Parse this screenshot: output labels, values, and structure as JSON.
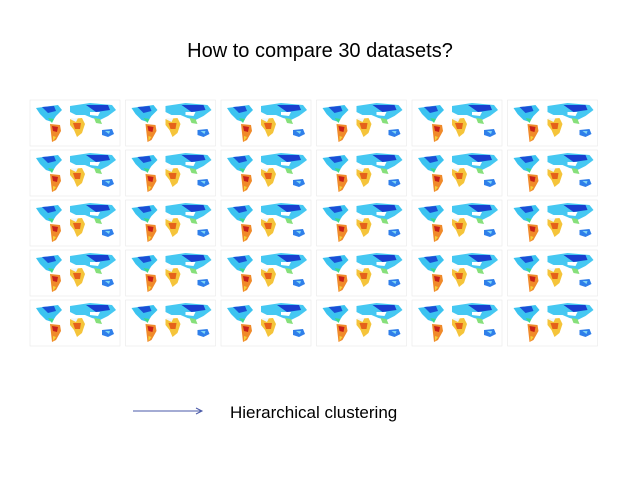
{
  "slide": {
    "title": "How to compare 30  datasets?",
    "caption": "Hierarchical clustering"
  }
}
